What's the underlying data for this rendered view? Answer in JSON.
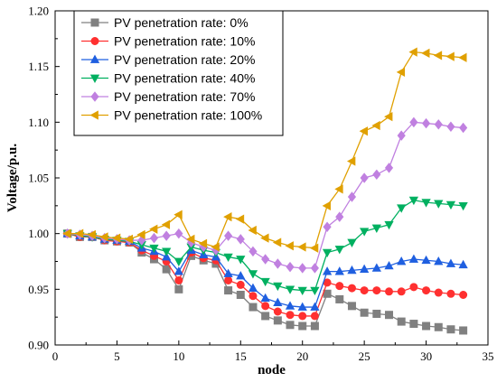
{
  "chart_data": {
    "type": "line",
    "title": "",
    "xlabel": "node",
    "ylabel": "Voltage/p.u.",
    "xlim": [
      0,
      35
    ],
    "ylim": [
      0.9,
      1.2
    ],
    "xticks": [
      0,
      5,
      10,
      15,
      20,
      25,
      30,
      35
    ],
    "yticks": [
      0.9,
      0.95,
      1.0,
      1.05,
      1.1,
      1.15,
      1.2
    ],
    "ytick_labels": [
      "0.90",
      "0.95",
      "1.00",
      "1.05",
      "1.10",
      "1.15",
      "1.20"
    ],
    "grid": false,
    "legend_position": "top-left",
    "x": [
      1,
      2,
      3,
      4,
      5,
      6,
      7,
      8,
      9,
      10,
      11,
      12,
      13,
      14,
      15,
      16,
      17,
      18,
      19,
      20,
      21,
      22,
      23,
      24,
      25,
      26,
      27,
      28,
      29,
      30,
      31,
      32,
      33
    ],
    "series": [
      {
        "name": "PV penetration rate: 0%",
        "color": "#808080",
        "marker": "square",
        "values": [
          1.0,
          0.997,
          0.997,
          0.994,
          0.993,
          0.992,
          0.983,
          0.977,
          0.968,
          0.95,
          0.98,
          0.976,
          0.973,
          0.949,
          0.945,
          0.934,
          0.926,
          0.922,
          0.918,
          0.917,
          0.917,
          0.946,
          0.941,
          0.935,
          0.929,
          0.928,
          0.927,
          0.921,
          0.919,
          0.917,
          0.916,
          0.914,
          0.913
        ]
      },
      {
        "name": "PV penetration rate: 10%",
        "color": "#ff3030",
        "marker": "circle",
        "values": [
          1.0,
          0.997,
          0.997,
          0.994,
          0.993,
          0.992,
          0.985,
          0.98,
          0.975,
          0.958,
          0.983,
          0.978,
          0.976,
          0.958,
          0.954,
          0.944,
          0.935,
          0.93,
          0.927,
          0.926,
          0.926,
          0.956,
          0.953,
          0.951,
          0.949,
          0.949,
          0.948,
          0.948,
          0.952,
          0.949,
          0.947,
          0.946,
          0.945
        ]
      },
      {
        "name": "PV penetration rate: 20%",
        "color": "#1f5fe0",
        "marker": "triangle-up",
        "values": [
          1.0,
          0.998,
          0.997,
          0.995,
          0.994,
          0.993,
          0.987,
          0.984,
          0.979,
          0.966,
          0.985,
          0.981,
          0.979,
          0.964,
          0.962,
          0.951,
          0.942,
          0.938,
          0.935,
          0.934,
          0.934,
          0.966,
          0.966,
          0.967,
          0.968,
          0.969,
          0.971,
          0.975,
          0.977,
          0.976,
          0.975,
          0.973,
          0.972
        ]
      },
      {
        "name": "PV penetration rate: 40%",
        "color": "#00b060",
        "marker": "triangle-down",
        "values": [
          1.0,
          0.998,
          0.997,
          0.995,
          0.994,
          0.993,
          0.99,
          0.987,
          0.984,
          0.975,
          0.988,
          0.985,
          0.983,
          0.979,
          0.977,
          0.964,
          0.957,
          0.953,
          0.95,
          0.949,
          0.949,
          0.983,
          0.986,
          0.992,
          1.002,
          1.005,
          1.008,
          1.023,
          1.03,
          1.028,
          1.027,
          1.026,
          1.025
        ]
      },
      {
        "name": "PV penetration rate: 70%",
        "color": "#c080e0",
        "marker": "diamond",
        "values": [
          1.0,
          0.999,
          0.998,
          0.996,
          0.995,
          0.994,
          0.994,
          0.996,
          0.998,
          1.0,
          0.992,
          0.988,
          0.985,
          0.998,
          0.995,
          0.984,
          0.977,
          0.973,
          0.97,
          0.969,
          0.969,
          1.006,
          1.015,
          1.033,
          1.05,
          1.053,
          1.059,
          1.088,
          1.1,
          1.099,
          1.098,
          1.096,
          1.095
        ]
      },
      {
        "name": "PV penetration rate: 100%",
        "color": "#e0a000",
        "marker": "triangle-left",
        "values": [
          1.0,
          1.0,
          0.999,
          0.997,
          0.996,
          0.995,
          0.999,
          1.004,
          1.008,
          1.017,
          0.995,
          0.991,
          0.988,
          1.015,
          1.013,
          1.003,
          0.996,
          0.992,
          0.989,
          0.988,
          0.987,
          1.025,
          1.04,
          1.065,
          1.092,
          1.097,
          1.105,
          1.145,
          1.163,
          1.162,
          1.16,
          1.159,
          1.158
        ]
      }
    ]
  }
}
